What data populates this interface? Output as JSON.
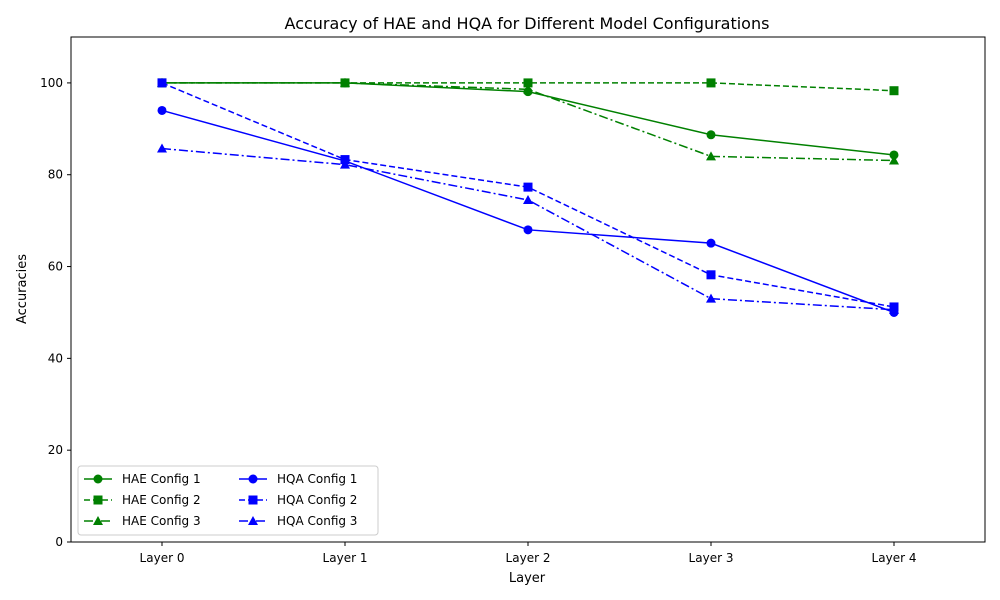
{
  "chart_data": {
    "type": "line",
    "title": "Accuracy of HAE and HQA for Different Model Configurations",
    "xlabel": "Layer",
    "ylabel": "Accuracies",
    "categories": [
      "Layer 0",
      "Layer 1",
      "Layer 2",
      "Layer 3",
      "Layer 4"
    ],
    "ylim": [
      0,
      110
    ],
    "yticks": [
      0,
      20,
      40,
      60,
      80,
      100
    ],
    "grid": false,
    "legend_placement": "lower-left",
    "series": [
      {
        "name": "HAE Config 1",
        "color": "#008000",
        "dash": "solid",
        "marker": "circle",
        "values": [
          100,
          100,
          98.1,
          88.7,
          84.3
        ]
      },
      {
        "name": "HAE Config 2",
        "color": "#008000",
        "dash": "dashed",
        "marker": "square",
        "values": [
          100,
          100,
          100,
          100,
          98.3
        ]
      },
      {
        "name": "HAE Config 3",
        "color": "#008000",
        "dash": "dashdot",
        "marker": "triangle",
        "values": [
          100,
          100,
          98.6,
          84.0,
          83.1
        ]
      },
      {
        "name": "HQA Config 1",
        "color": "#0000ff",
        "dash": "solid",
        "marker": "circle",
        "values": [
          94.0,
          83.0,
          68.0,
          65.1,
          50.0
        ]
      },
      {
        "name": "HQA Config 2",
        "color": "#0000ff",
        "dash": "dashed",
        "marker": "square",
        "values": [
          100,
          83.3,
          77.3,
          58.2,
          51.2
        ]
      },
      {
        "name": "HQA Config 3",
        "color": "#0000ff",
        "dash": "dashdot",
        "marker": "triangle",
        "values": [
          85.7,
          82.2,
          74.5,
          53.0,
          50.6
        ]
      }
    ]
  }
}
